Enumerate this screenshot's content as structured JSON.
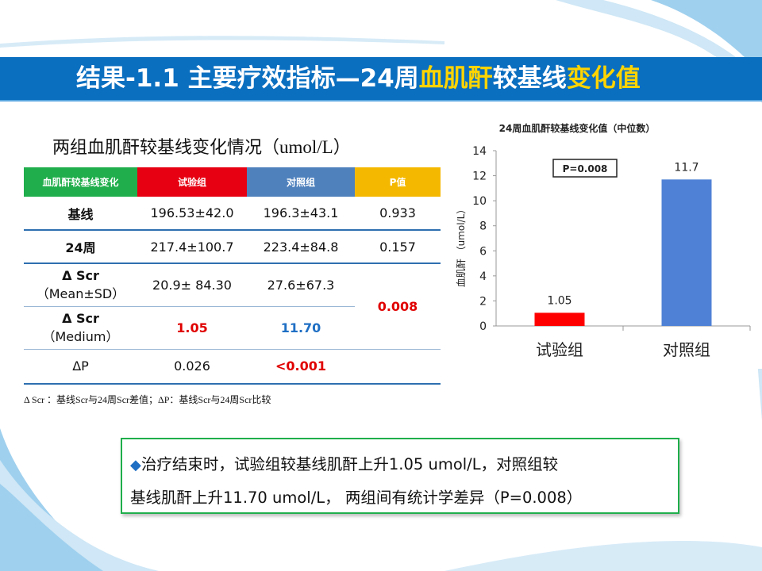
{
  "slide": {
    "title_prefix": "结果-1.1  主要疗效指标—24周",
    "title_highlight_1": "血肌酐",
    "title_middle": "较基线",
    "title_highlight_2": "变化值"
  },
  "table": {
    "title": "两组血肌酐较基线变化情况（",
    "title_unit": "umol/L",
    "title_close": "）",
    "headers": [
      {
        "label": "血肌酐较基线变化",
        "color": "#1fae4b"
      },
      {
        "label": "试验组",
        "color": "#e60012"
      },
      {
        "label": "对照组",
        "color": "#4f81bd"
      },
      {
        "label": "P值",
        "color": "#f5b800"
      }
    ],
    "rows": {
      "baseline": {
        "label": "基线",
        "trial": "196.53±42.0",
        "control": "196.3±43.1",
        "p": "0.933"
      },
      "week24": {
        "label": "24周",
        "trial": "217.4±100.7",
        "control": "223.4±84.8",
        "p": "0.157"
      },
      "mean": {
        "label": "Δ Scr",
        "sublabel": "（Mean±SD）",
        "trial": "20.9± 84.30",
        "control": "27.6±67.3"
      },
      "median": {
        "label": "Δ Scr",
        "sublabel": "（Medium）",
        "trial": "1.05",
        "control": "11.70"
      },
      "merged_p": "0.008",
      "deltap": {
        "label": "ΔP",
        "trial": "0.026",
        "control": "<0.001"
      }
    },
    "footnote": "Δ Scr ：基线Scr与24周Scr差值；ΔP：基线Scr与24周Scr比较"
  },
  "summary": {
    "bullet": "◆",
    "line1": "治疗结束时，试验组较基线肌酐上升1.05 umol/L，对照组较",
    "line2": "基线肌酐上升11.70 umol/L， 两组间有统计学差异（P=0.008）"
  },
  "chart_data": {
    "type": "bar",
    "title": "24周血肌酐较基线变化值（中位数）",
    "ylabel": "血肌酐 （umol/L）",
    "xlabel": "",
    "categories": [
      "试验组",
      "对照组"
    ],
    "values": [
      1.05,
      11.7
    ],
    "value_labels": [
      "1.05",
      "11.7"
    ],
    "colors": [
      "#ff0000",
      "#4f81d6"
    ],
    "ylim": [
      0,
      14
    ],
    "yticks": [
      "0",
      "2",
      "4",
      "6",
      "8",
      "10",
      "12",
      "14"
    ],
    "annotation": "P=0.008",
    "grid": false,
    "legend": "none"
  }
}
